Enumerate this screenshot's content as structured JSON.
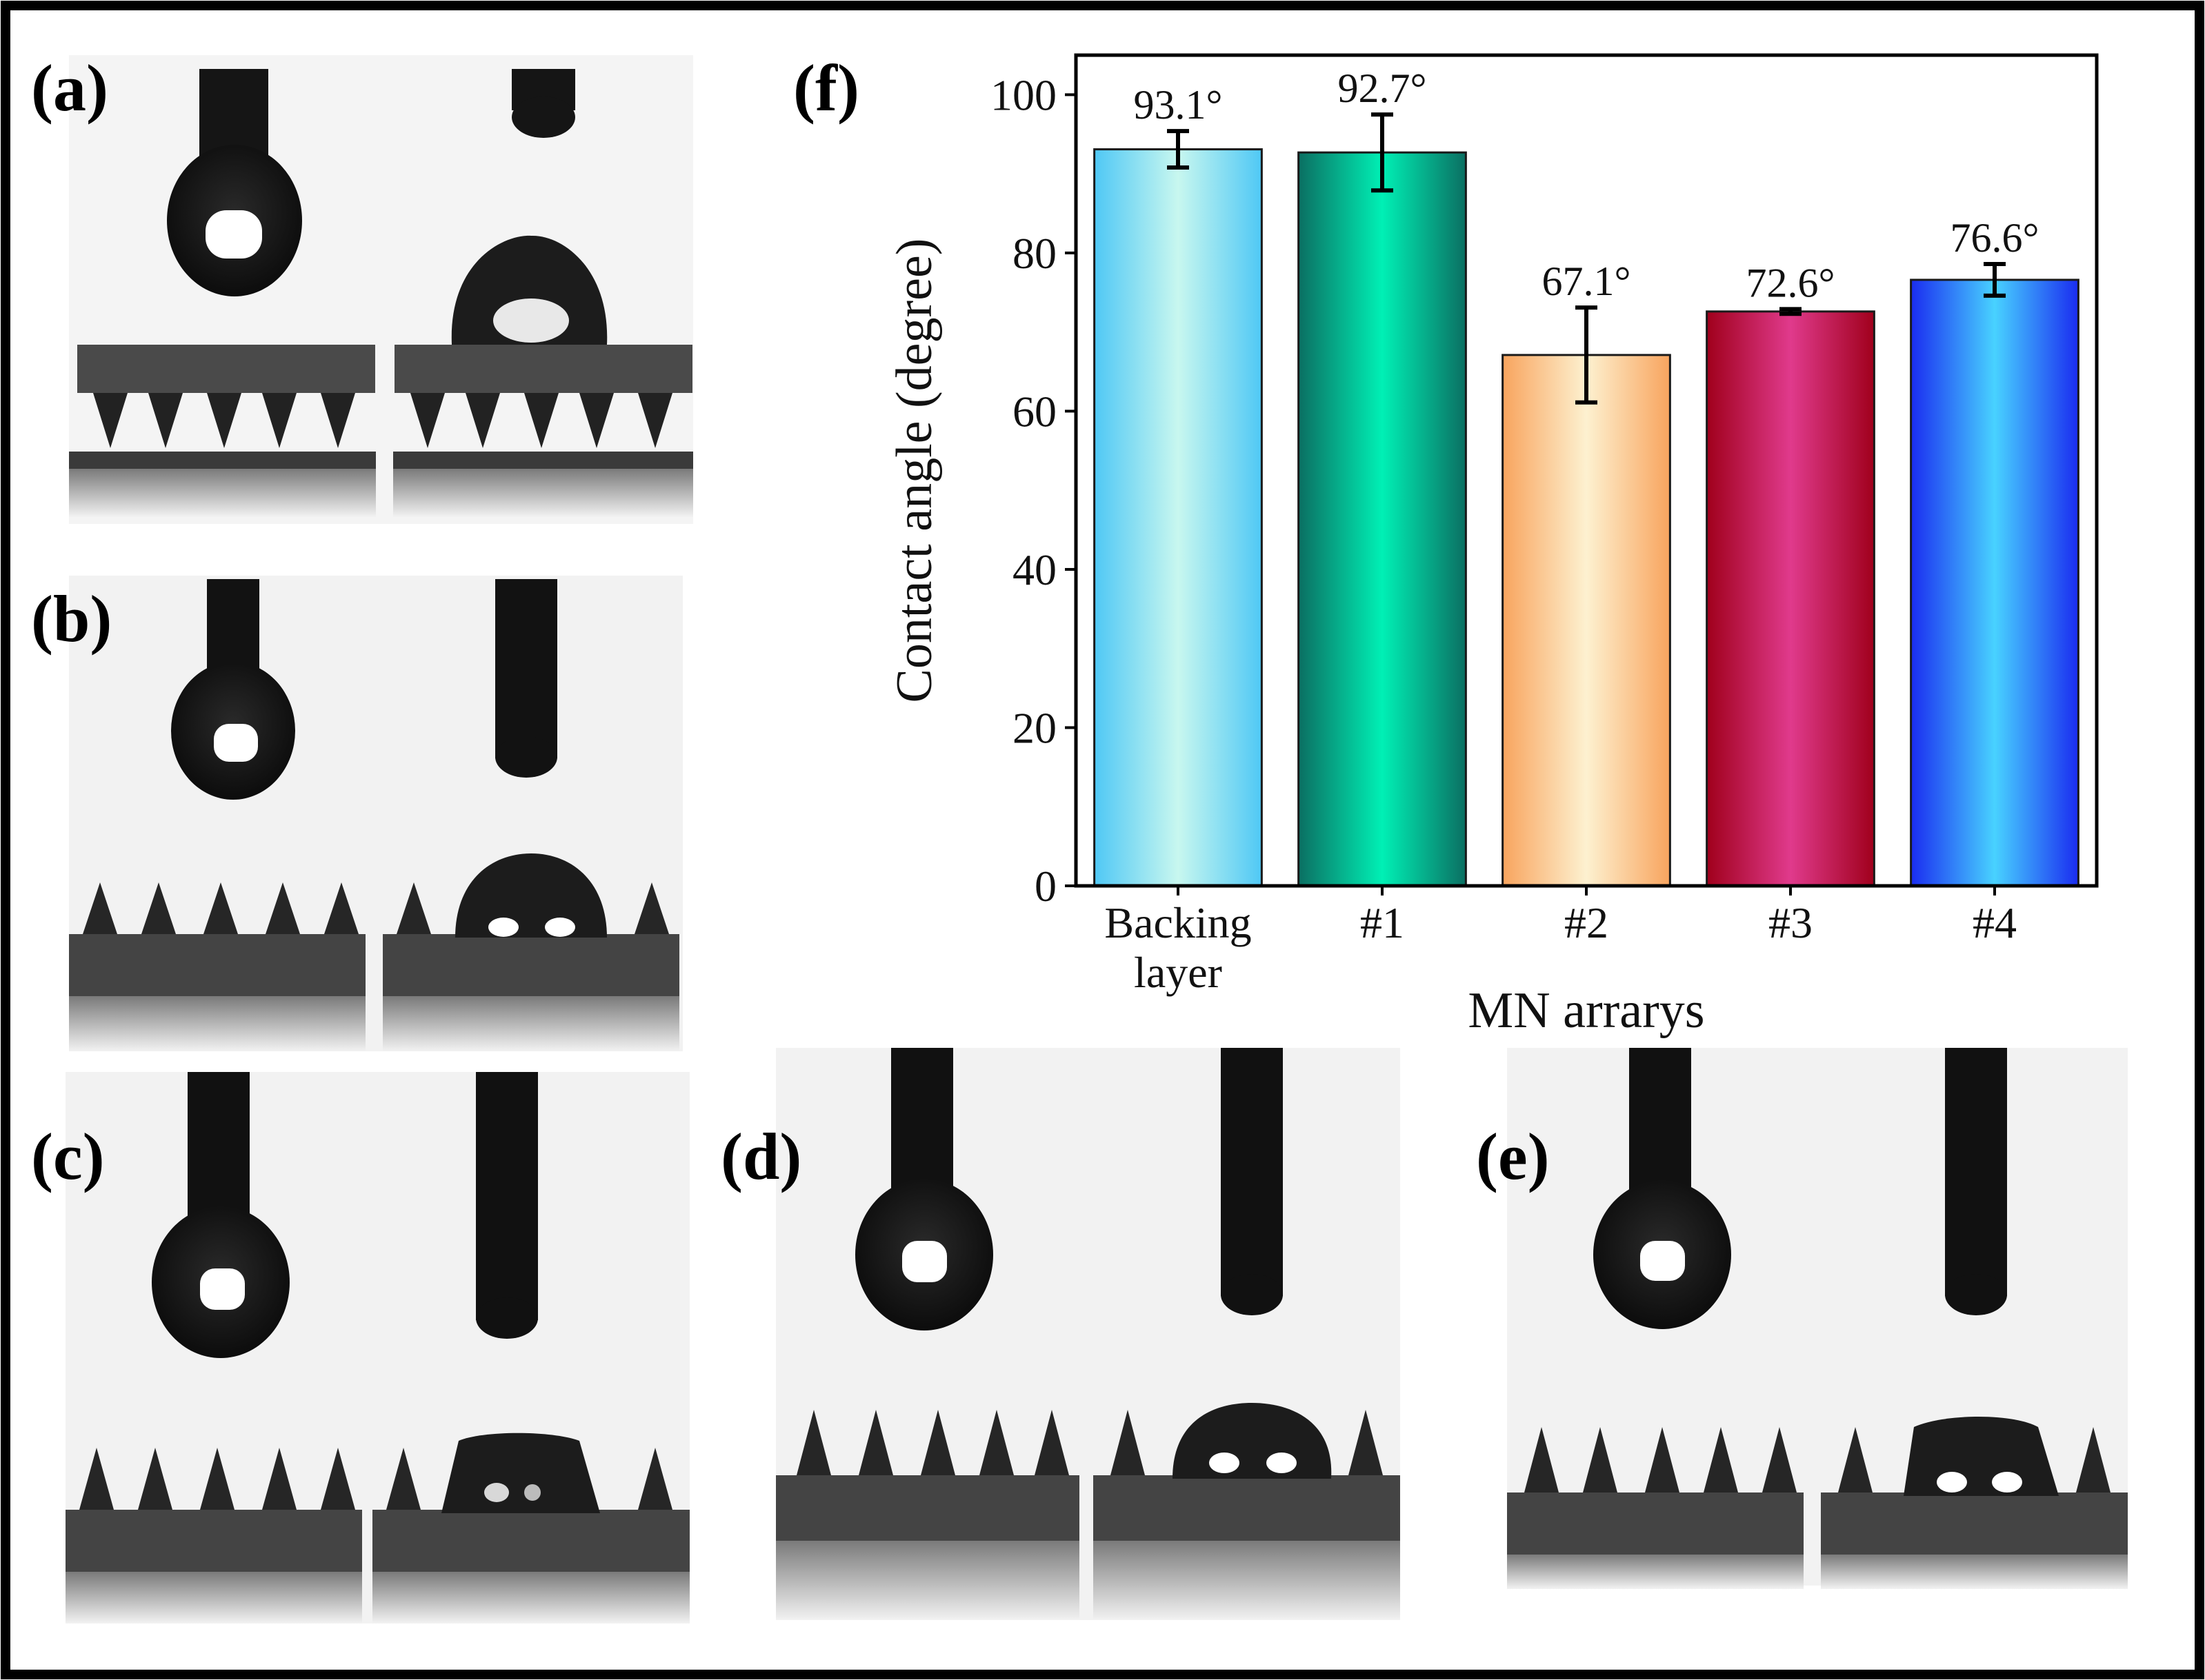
{
  "panel_labels": [
    "(a)",
    "(b)",
    "(c)",
    "(d)",
    "(e)",
    "(f)"
  ],
  "colors": {
    "frame": "#000000",
    "photo_background": "#f2f2f2",
    "silhouette": "#141414",
    "droplet_highlight": "#ffffff"
  },
  "chart_data": {
    "type": "bar",
    "panel": "(f)",
    "categories": [
      "Backing layer",
      "#1",
      "#2",
      "#3",
      "#4"
    ],
    "category_lines": [
      [
        "Backing",
        "layer"
      ],
      [
        "#1"
      ],
      [
        "#2"
      ],
      [
        "#3"
      ],
      [
        "#4"
      ]
    ],
    "values": [
      93.1,
      92.7,
      67.1,
      72.6,
      76.6
    ],
    "errors": [
      2.3,
      4.8,
      6.0,
      0.3,
      2.0
    ],
    "data_labels": [
      "93.1°",
      "92.7°",
      "67.1°",
      "72.6°",
      "76.6°"
    ],
    "xlabel": "MN arrarys",
    "ylabel": "Contact angle (degree)",
    "ylim": [
      0,
      105
    ],
    "yticks": [
      0,
      20,
      40,
      60,
      80,
      100
    ],
    "grid": false,
    "bar_gradients": [
      [
        "#4fc8f5",
        "#c8f7ef",
        "#4fc8f5"
      ],
      [
        "#0b6f62",
        "#00f0b5",
        "#0b6f62"
      ],
      [
        "#f8a45e",
        "#fdf1d0",
        "#f8a45e"
      ],
      [
        "#a0001c",
        "#e03a8c",
        "#a0001c"
      ],
      [
        "#1a2cf0",
        "#48d2ff",
        "#1a2cf0"
      ]
    ]
  }
}
